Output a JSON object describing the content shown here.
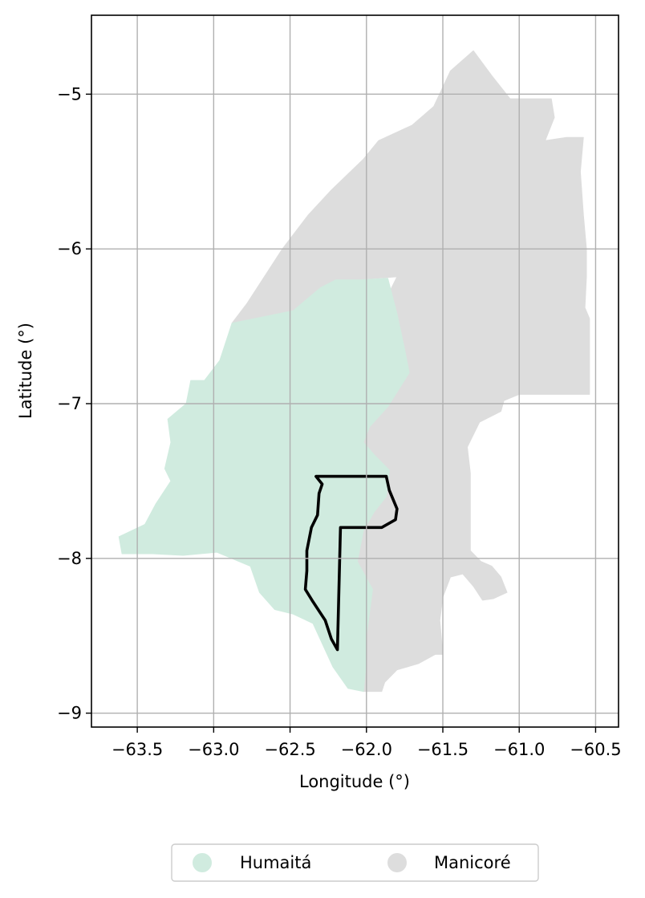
{
  "chart_data": {
    "type": "choropleth-map",
    "xlabel": "Longitude (°)",
    "ylabel": "Latitude (°)",
    "xlim": [
      -63.8,
      -60.35
    ],
    "ylim": [
      -9.09,
      -4.49
    ],
    "x_ticks": [
      -63.5,
      -63.0,
      -62.5,
      -62.0,
      -61.5,
      -61.0,
      -60.5
    ],
    "x_tick_labels": [
      "−63.5",
      "−63.0",
      "−62.5",
      "−62.0",
      "−61.5",
      "−61.0",
      "−60.5"
    ],
    "y_ticks": [
      -5,
      -6,
      -7,
      -8,
      -9
    ],
    "y_tick_labels": [
      "−5",
      "−6",
      "−7",
      "−8",
      "−9"
    ],
    "grid": true,
    "legend_position": "bottom-center",
    "legend": [
      {
        "name": "Humaitá",
        "color": "#d0ebdf"
      },
      {
        "name": "Manicoré",
        "color": "#dddddd"
      }
    ],
    "regions": [
      {
        "name": "Manicoré",
        "color": "#dddddd",
        "polygon": [
          [
            -61.3,
            -4.72
          ],
          [
            -61.18,
            -4.88
          ],
          [
            -61.06,
            -5.03
          ],
          [
            -60.79,
            -5.03
          ],
          [
            -60.77,
            -5.15
          ],
          [
            -60.83,
            -5.3
          ],
          [
            -60.69,
            -5.28
          ],
          [
            -60.58,
            -5.28
          ],
          [
            -60.6,
            -5.5
          ],
          [
            -60.58,
            -5.78
          ],
          [
            -60.56,
            -6.0
          ],
          [
            -60.56,
            -6.18
          ],
          [
            -60.57,
            -6.38
          ],
          [
            -60.54,
            -6.45
          ],
          [
            -60.54,
            -6.94
          ],
          [
            -61.0,
            -6.94
          ],
          [
            -61.1,
            -6.98
          ],
          [
            -61.12,
            -7.05
          ],
          [
            -61.26,
            -7.12
          ],
          [
            -61.34,
            -7.28
          ],
          [
            -61.32,
            -7.45
          ],
          [
            -61.32,
            -7.95
          ],
          [
            -61.25,
            -8.02
          ],
          [
            -61.18,
            -8.05
          ],
          [
            -61.12,
            -8.12
          ],
          [
            -61.08,
            -8.22
          ],
          [
            -61.17,
            -8.26
          ],
          [
            -61.24,
            -8.27
          ],
          [
            -61.3,
            -8.18
          ],
          [
            -61.37,
            -8.1
          ],
          [
            -61.45,
            -8.12
          ],
          [
            -61.5,
            -8.25
          ],
          [
            -61.52,
            -8.4
          ],
          [
            -61.5,
            -8.62
          ],
          [
            -61.55,
            -8.62
          ],
          [
            -61.66,
            -8.68
          ],
          [
            -61.8,
            -8.72
          ],
          [
            -61.88,
            -8.8
          ],
          [
            -61.9,
            -8.86
          ],
          [
            -62.02,
            -8.86
          ],
          [
            -62.0,
            -8.66
          ],
          [
            -62.0,
            -8.5
          ],
          [
            -61.96,
            -8.2
          ],
          [
            -62.06,
            -8.02
          ],
          [
            -62.02,
            -7.82
          ],
          [
            -61.95,
            -7.7
          ],
          [
            -61.87,
            -7.6
          ],
          [
            -61.85,
            -7.43
          ],
          [
            -61.95,
            -7.33
          ],
          [
            -62.02,
            -7.25
          ],
          [
            -61.98,
            -7.15
          ],
          [
            -61.86,
            -7.02
          ],
          [
            -61.72,
            -6.8
          ],
          [
            -61.75,
            -6.65
          ],
          [
            -61.8,
            -6.42
          ],
          [
            -61.86,
            -6.3
          ],
          [
            -61.8,
            -6.18
          ],
          [
            -62.09,
            -6.2
          ],
          [
            -62.26,
            -6.3
          ],
          [
            -62.48,
            -6.4
          ],
          [
            -62.88,
            -6.48
          ],
          [
            -62.78,
            -6.35
          ],
          [
            -62.55,
            -6.0
          ],
          [
            -62.38,
            -5.78
          ],
          [
            -62.23,
            -5.62
          ],
          [
            -62.02,
            -5.42
          ],
          [
            -61.92,
            -5.3
          ],
          [
            -61.7,
            -5.2
          ],
          [
            -61.56,
            -5.08
          ],
          [
            -61.45,
            -4.85
          ]
        ]
      },
      {
        "name": "Humaitá",
        "color": "#d0ebdf",
        "polygon": [
          [
            -62.04,
            -6.2
          ],
          [
            -61.86,
            -6.19
          ],
          [
            -61.8,
            -6.42
          ],
          [
            -61.75,
            -6.65
          ],
          [
            -61.72,
            -6.8
          ],
          [
            -61.86,
            -7.02
          ],
          [
            -61.98,
            -7.15
          ],
          [
            -62.02,
            -7.25
          ],
          [
            -61.95,
            -7.33
          ],
          [
            -61.85,
            -7.43
          ],
          [
            -61.87,
            -7.6
          ],
          [
            -61.95,
            -7.7
          ],
          [
            -62.02,
            -7.82
          ],
          [
            -62.06,
            -8.02
          ],
          [
            -61.96,
            -8.2
          ],
          [
            -62.0,
            -8.5
          ],
          [
            -62.0,
            -8.66
          ],
          [
            -62.02,
            -8.86
          ],
          [
            -62.12,
            -8.84
          ],
          [
            -62.22,
            -8.7
          ],
          [
            -62.35,
            -8.42
          ],
          [
            -62.48,
            -8.36
          ],
          [
            -62.6,
            -8.33
          ],
          [
            -62.7,
            -8.22
          ],
          [
            -62.76,
            -8.05
          ],
          [
            -62.98,
            -7.96
          ],
          [
            -63.2,
            -7.98
          ],
          [
            -63.4,
            -7.97
          ],
          [
            -63.6,
            -7.97
          ],
          [
            -63.62,
            -7.86
          ],
          [
            -63.45,
            -7.78
          ],
          [
            -63.38,
            -7.65
          ],
          [
            -63.28,
            -7.5
          ],
          [
            -63.32,
            -7.42
          ],
          [
            -63.28,
            -7.25
          ],
          [
            -63.3,
            -7.1
          ],
          [
            -63.18,
            -7.0
          ],
          [
            -63.15,
            -6.85
          ],
          [
            -63.06,
            -6.85
          ],
          [
            -62.96,
            -6.72
          ],
          [
            -62.88,
            -6.48
          ],
          [
            -62.48,
            -6.4
          ],
          [
            -62.3,
            -6.25
          ],
          [
            -62.2,
            -6.2
          ]
        ]
      }
    ],
    "outline": {
      "stroke": "#000000",
      "polygon": [
        [
          -62.33,
          -7.47
        ],
        [
          -61.87,
          -7.47
        ],
        [
          -61.85,
          -7.56
        ],
        [
          -61.8,
          -7.68
        ],
        [
          -61.81,
          -7.75
        ],
        [
          -61.9,
          -7.8
        ],
        [
          -62.17,
          -7.8
        ],
        [
          -62.19,
          -8.59
        ],
        [
          -62.23,
          -8.52
        ],
        [
          -62.27,
          -8.4
        ],
        [
          -62.35,
          -8.28
        ],
        [
          -62.4,
          -8.2
        ],
        [
          -62.39,
          -8.08
        ],
        [
          -62.39,
          -7.95
        ],
        [
          -62.36,
          -7.8
        ],
        [
          -62.32,
          -7.72
        ],
        [
          -62.31,
          -7.58
        ],
        [
          -62.29,
          -7.52
        ]
      ]
    }
  }
}
